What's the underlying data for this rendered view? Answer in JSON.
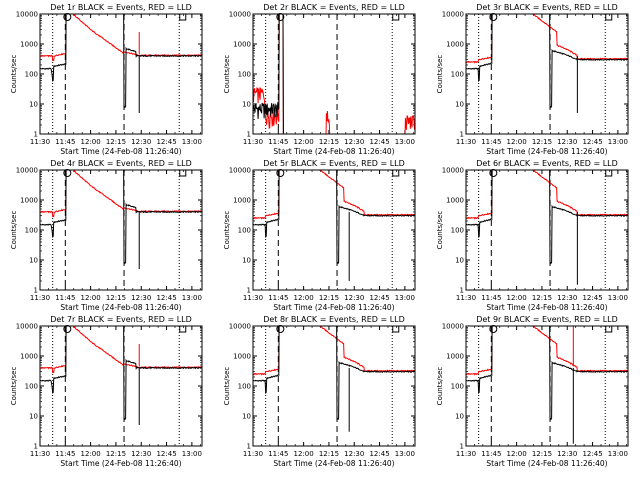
{
  "figure": {
    "background": "#ffffff",
    "colors": {
      "events": "#000000",
      "lld": "#ff0000",
      "axis": "#000000"
    }
  },
  "chart_data": [
    {
      "type": "line",
      "title": "Det 1r  BLACK = Events, RED = LLD",
      "xlabel": "Start Time (24-Feb-08 11:26:40)",
      "ylabel": "Counts/sec",
      "yscale": "log",
      "ylim": [
        1,
        10000
      ],
      "yticks": [
        1,
        10,
        100,
        1000,
        10000
      ],
      "xlim": [
        11.5,
        13.1
      ],
      "xticklabels": [
        "11:30",
        "11:45",
        "12:00",
        "12:15",
        "12:30",
        "12:45",
        "13:00"
      ],
      "profile": "standard",
      "markers": {
        "dotted": [
          11.625,
          12.875
        ],
        "dashed": [
          11.75,
          12.33
        ],
        "circle": 11.77,
        "square": 12.91
      },
      "spikes": [
        {
          "x": 12.48,
          "series": "events",
          "min": 5
        },
        {
          "x": 12.48,
          "series": "lld",
          "max": 2500
        }
      ]
    },
    {
      "type": "line",
      "title": "Det 2r  BLACK = Events, RED = LLD",
      "xlabel": "Start Time (24-Feb-08 11:26:40)",
      "ylabel": "Counts/sec",
      "yscale": "log",
      "ylim": [
        1,
        10000
      ],
      "yticks": [
        1,
        10,
        100,
        1000,
        10000
      ],
      "xlim": [
        11.5,
        13.1
      ],
      "xticklabels": [
        "11:30",
        "11:45",
        "12:00",
        "12:15",
        "12:30",
        "12:45",
        "13:00"
      ],
      "profile": "noisy",
      "markers": {
        "dotted": [
          11.625,
          12.875
        ],
        "dashed": [
          11.75,
          12.33
        ],
        "circle": 11.77,
        "square": 12.91
      },
      "spikes": []
    },
    {
      "type": "line",
      "title": "Det 3r  BLACK = Events, RED = LLD",
      "xlabel": "Start Time (24-Feb-08 11:26:40)",
      "ylabel": "Counts/sec",
      "yscale": "log",
      "ylim": [
        1,
        10000
      ],
      "yticks": [
        1,
        10,
        100,
        1000,
        10000
      ],
      "xlim": [
        11.5,
        13.1
      ],
      "xticklabels": [
        "11:30",
        "11:45",
        "12:00",
        "12:15",
        "12:30",
        "12:45",
        "13:00"
      ],
      "profile": "slow",
      "markers": {
        "dotted": [
          11.625,
          12.875
        ],
        "dashed": [
          11.75,
          12.33
        ],
        "circle": 11.77,
        "square": 12.91
      },
      "spikes": [
        {
          "x": 12.6,
          "series": "events",
          "min": 5
        }
      ]
    },
    {
      "type": "line",
      "title": "Det 4r  BLACK = Events, RED = LLD",
      "xlabel": "Start Time (24-Feb-08 11:26:40)",
      "ylabel": "Counts/sec",
      "yscale": "log",
      "ylim": [
        1,
        10000
      ],
      "yticks": [
        1,
        10,
        100,
        1000,
        10000
      ],
      "xlim": [
        11.5,
        13.1
      ],
      "xticklabels": [
        "11:30",
        "11:45",
        "12:00",
        "12:15",
        "12:30",
        "12:45",
        "13:00"
      ],
      "profile": "standard",
      "markers": {
        "dotted": [
          11.625,
          12.875
        ],
        "dashed": [
          11.75,
          12.33
        ],
        "circle": 11.77,
        "square": 12.91
      },
      "spikes": [
        {
          "x": 12.48,
          "series": "events",
          "min": 5
        }
      ]
    },
    {
      "type": "line",
      "title": "Det 5r  BLACK = Events, RED = LLD",
      "xlabel": "Start Time (24-Feb-08 11:26:40)",
      "ylabel": "Counts/sec",
      "yscale": "log",
      "ylim": [
        1,
        10000
      ],
      "yticks": [
        1,
        10,
        100,
        1000,
        10000
      ],
      "xlim": [
        11.5,
        13.1
      ],
      "xticklabels": [
        "11:30",
        "11:45",
        "12:00",
        "12:15",
        "12:30",
        "12:45",
        "13:00"
      ],
      "profile": "slow",
      "markers": {
        "dotted": [
          11.625,
          12.875
        ],
        "dashed": [
          11.75,
          12.33
        ],
        "circle": 11.77,
        "square": 12.91
      },
      "spikes": [
        {
          "x": 12.45,
          "series": "events",
          "min": 2
        }
      ]
    },
    {
      "type": "line",
      "title": "Det 6r  BLACK = Events, RED = LLD",
      "xlabel": "Start Time (24-Feb-08 11:26:40)",
      "ylabel": "Counts/sec",
      "yscale": "log",
      "ylim": [
        1,
        10000
      ],
      "yticks": [
        1,
        10,
        100,
        1000,
        10000
      ],
      "xlim": [
        11.5,
        13.1
      ],
      "xticklabels": [
        "11:30",
        "11:45",
        "12:00",
        "12:15",
        "12:30",
        "12:45",
        "13:00"
      ],
      "profile": "slow",
      "markers": {
        "dotted": [
          11.625,
          12.875
        ],
        "dashed": [
          11.75,
          12.33
        ],
        "circle": 11.77,
        "square": 12.91
      },
      "spikes": [
        {
          "x": 12.6,
          "series": "events",
          "min": 1.5
        }
      ]
    },
    {
      "type": "line",
      "title": "Det 7r  BLACK = Events, RED = LLD",
      "xlabel": "Start Time (24-Feb-08 11:26:40)",
      "ylabel": "Counts/sec",
      "yscale": "log",
      "ylim": [
        1,
        10000
      ],
      "yticks": [
        1,
        10,
        100,
        1000,
        10000
      ],
      "xlim": [
        11.5,
        13.1
      ],
      "xticklabels": [
        "11:30",
        "11:45",
        "12:00",
        "12:15",
        "12:30",
        "12:45",
        "13:00"
      ],
      "profile": "standard",
      "markers": {
        "dotted": [
          11.625,
          12.875
        ],
        "dashed": [
          11.75,
          12.33
        ],
        "circle": 11.77,
        "square": 12.91
      },
      "spikes": [
        {
          "x": 12.48,
          "series": "events",
          "min": 5
        },
        {
          "x": 12.48,
          "series": "lld",
          "max": 2500
        }
      ]
    },
    {
      "type": "line",
      "title": "Det 8r  BLACK = Events, RED = LLD",
      "xlabel": "Start Time (24-Feb-08 11:26:40)",
      "ylabel": "Counts/sec",
      "yscale": "log",
      "ylim": [
        1,
        10000
      ],
      "yticks": [
        1,
        10,
        100,
        1000,
        10000
      ],
      "xlim": [
        11.5,
        13.1
      ],
      "xticklabels": [
        "11:30",
        "11:45",
        "12:00",
        "12:15",
        "12:30",
        "12:45",
        "13:00"
      ],
      "profile": "slow",
      "markers": {
        "dotted": [
          11.625,
          12.875
        ],
        "dashed": [
          11.75,
          12.33
        ],
        "circle": 11.77,
        "square": 12.91
      },
      "spikes": [
        {
          "x": 12.45,
          "series": "events",
          "min": 3
        }
      ]
    },
    {
      "type": "line",
      "title": "Det 9r  BLACK = Events, RED = LLD",
      "xlabel": "Start Time (24-Feb-08 11:26:40)",
      "ylabel": "Counts/sec",
      "yscale": "log",
      "ylim": [
        1,
        10000
      ],
      "yticks": [
        1,
        10,
        100,
        1000,
        10000
      ],
      "xlim": [
        11.5,
        13.1
      ],
      "xticklabels": [
        "11:30",
        "11:45",
        "12:00",
        "12:15",
        "12:30",
        "12:45",
        "13:00"
      ],
      "profile": "slow",
      "markers": {
        "dotted": [
          11.625,
          12.875
        ],
        "dashed": [
          11.75,
          12.33
        ],
        "circle": 11.77,
        "square": 12.91
      },
      "spikes": [
        {
          "x": 12.56,
          "series": "events",
          "min": 1.2
        },
        {
          "x": 12.56,
          "series": "lld",
          "max": 10000
        }
      ]
    }
  ]
}
